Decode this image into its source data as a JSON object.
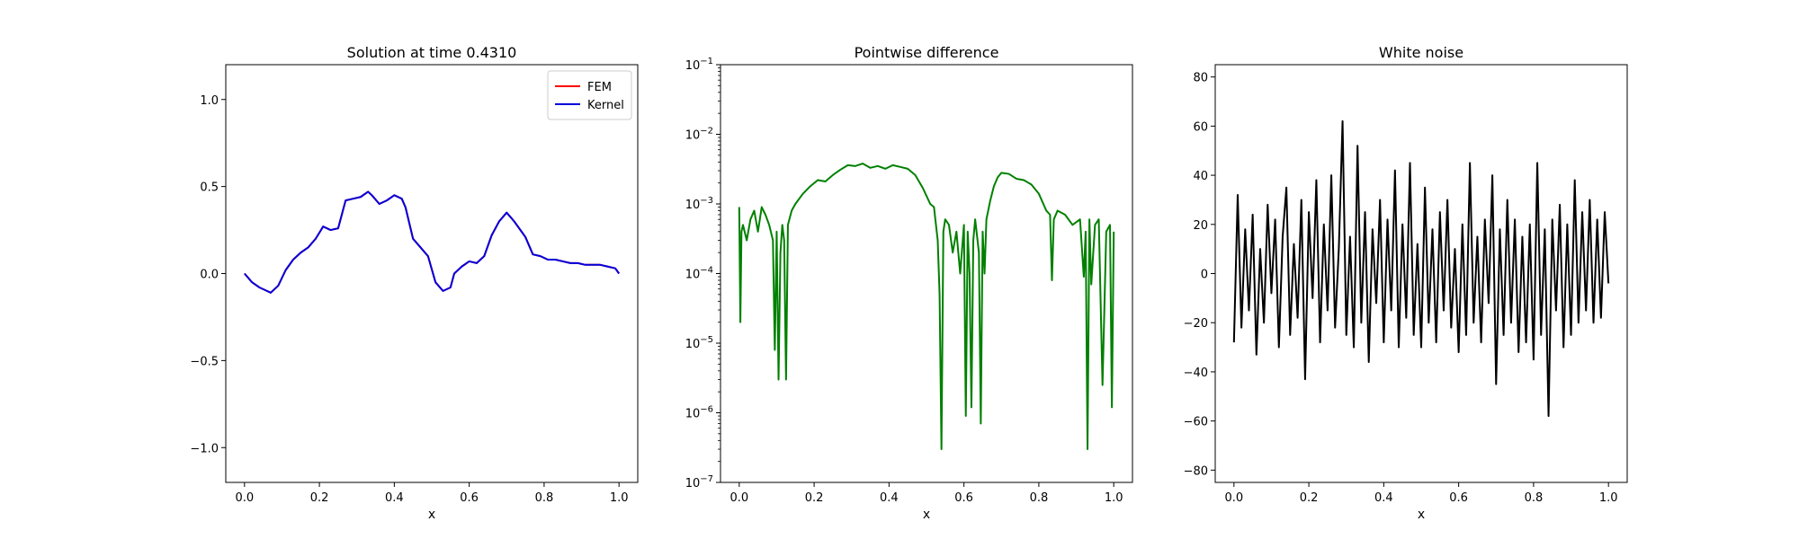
{
  "chart_data": [
    {
      "type": "line",
      "title": "Solution at time 0.4310",
      "xlabel": "x",
      "ylabel": "",
      "xlim": [
        -0.05,
        1.05
      ],
      "ylim": [
        -1.2,
        1.2
      ],
      "xticks": [
        0.0,
        0.2,
        0.4,
        0.6,
        0.8,
        1.0
      ],
      "xtick_labels": [
        "0.0",
        "0.2",
        "0.4",
        "0.6",
        "0.8",
        "1.0"
      ],
      "yticks": [
        -1.0,
        -0.5,
        0.0,
        0.5,
        1.0
      ],
      "ytick_labels": [
        "−1.0",
        "−0.5",
        "0.0",
        "0.5",
        "1.0"
      ],
      "legend_position": "top-right",
      "series": [
        {
          "name": "FEM",
          "color": "#ff0000",
          "x": [
            0.0,
            0.02,
            0.04,
            0.06,
            0.07,
            0.09,
            0.11,
            0.13,
            0.15,
            0.17,
            0.19,
            0.21,
            0.23,
            0.25,
            0.27,
            0.29,
            0.31,
            0.33,
            0.34,
            0.36,
            0.38,
            0.4,
            0.42,
            0.43,
            0.45,
            0.47,
            0.49,
            0.51,
            0.53,
            0.55,
            0.56,
            0.58,
            0.6,
            0.62,
            0.64,
            0.66,
            0.68,
            0.7,
            0.72,
            0.74,
            0.75,
            0.77,
            0.79,
            0.81,
            0.83,
            0.85,
            0.87,
            0.89,
            0.91,
            0.93,
            0.95,
            0.97,
            0.99,
            1.0
          ],
          "y": [
            0.0,
            -0.05,
            -0.08,
            -0.1,
            -0.11,
            -0.07,
            0.02,
            0.08,
            0.12,
            0.15,
            0.2,
            0.27,
            0.25,
            0.26,
            0.42,
            0.43,
            0.44,
            0.47,
            0.45,
            0.4,
            0.42,
            0.45,
            0.43,
            0.38,
            0.2,
            0.15,
            0.1,
            -0.05,
            -0.1,
            -0.08,
            0.0,
            0.04,
            0.07,
            0.06,
            0.1,
            0.22,
            0.3,
            0.35,
            0.3,
            0.24,
            0.21,
            0.11,
            0.1,
            0.08,
            0.08,
            0.07,
            0.06,
            0.06,
            0.05,
            0.05,
            0.05,
            0.04,
            0.03,
            0.0
          ]
        },
        {
          "name": "Kernel",
          "color": "#0000dd",
          "x": [
            0.0,
            0.02,
            0.04,
            0.06,
            0.07,
            0.09,
            0.11,
            0.13,
            0.15,
            0.17,
            0.19,
            0.21,
            0.23,
            0.25,
            0.27,
            0.29,
            0.31,
            0.33,
            0.34,
            0.36,
            0.38,
            0.4,
            0.42,
            0.43,
            0.45,
            0.47,
            0.49,
            0.51,
            0.53,
            0.55,
            0.56,
            0.58,
            0.6,
            0.62,
            0.64,
            0.66,
            0.68,
            0.7,
            0.72,
            0.74,
            0.75,
            0.77,
            0.79,
            0.81,
            0.83,
            0.85,
            0.87,
            0.89,
            0.91,
            0.93,
            0.95,
            0.97,
            0.99,
            1.0
          ],
          "y": [
            0.0,
            -0.05,
            -0.08,
            -0.1,
            -0.11,
            -0.07,
            0.02,
            0.08,
            0.12,
            0.15,
            0.2,
            0.27,
            0.25,
            0.26,
            0.42,
            0.43,
            0.44,
            0.47,
            0.45,
            0.4,
            0.42,
            0.45,
            0.43,
            0.38,
            0.2,
            0.15,
            0.1,
            -0.05,
            -0.1,
            -0.08,
            0.0,
            0.04,
            0.07,
            0.06,
            0.1,
            0.22,
            0.3,
            0.35,
            0.3,
            0.24,
            0.21,
            0.11,
            0.1,
            0.08,
            0.08,
            0.07,
            0.06,
            0.06,
            0.05,
            0.05,
            0.05,
            0.04,
            0.03,
            0.0
          ]
        }
      ]
    },
    {
      "type": "line",
      "title": "Pointwise difference",
      "xlabel": "x",
      "ylabel": "",
      "yscale": "log",
      "xlim": [
        -0.05,
        1.05
      ],
      "ylim": [
        1e-07,
        0.1
      ],
      "xticks": [
        0.0,
        0.2,
        0.4,
        0.6,
        0.8,
        1.0
      ],
      "xtick_labels": [
        "0.0",
        "0.2",
        "0.4",
        "0.6",
        "0.8",
        "1.0"
      ],
      "yticks": [
        1e-07,
        1e-06,
        1e-05,
        0.0001,
        0.001,
        0.01,
        0.1
      ],
      "ytick_labels": [
        {
          "base": "10",
          "exp": "−7"
        },
        {
          "base": "10",
          "exp": "−6"
        },
        {
          "base": "10",
          "exp": "−5"
        },
        {
          "base": "10",
          "exp": "−4"
        },
        {
          "base": "10",
          "exp": "−3"
        },
        {
          "base": "10",
          "exp": "−2"
        },
        {
          "base": "10",
          "exp": "−1"
        }
      ],
      "series": [
        {
          "color": "#008000",
          "x": [
            0.0,
            0.003,
            0.006,
            0.01,
            0.02,
            0.03,
            0.04,
            0.05,
            0.06,
            0.07,
            0.08,
            0.09,
            0.095,
            0.1,
            0.105,
            0.11,
            0.115,
            0.12,
            0.125,
            0.13,
            0.14,
            0.15,
            0.17,
            0.19,
            0.21,
            0.23,
            0.25,
            0.27,
            0.29,
            0.31,
            0.33,
            0.35,
            0.37,
            0.39,
            0.41,
            0.43,
            0.45,
            0.47,
            0.49,
            0.51,
            0.52,
            0.53,
            0.535,
            0.54,
            0.545,
            0.55,
            0.56,
            0.57,
            0.58,
            0.59,
            0.6,
            0.605,
            0.61,
            0.615,
            0.62,
            0.625,
            0.63,
            0.64,
            0.645,
            0.65,
            0.655,
            0.66,
            0.67,
            0.68,
            0.69,
            0.7,
            0.72,
            0.74,
            0.76,
            0.78,
            0.8,
            0.82,
            0.83,
            0.835,
            0.84,
            0.85,
            0.87,
            0.89,
            0.91,
            0.92,
            0.925,
            0.93,
            0.935,
            0.94,
            0.95,
            0.96,
            0.97,
            0.98,
            0.99,
            0.995,
            1.0
          ],
          "y": [
            0.0009,
            2e-05,
            0.0004,
            0.0005,
            0.0003,
            0.0006,
            0.0008,
            0.0004,
            0.0009,
            0.0007,
            0.0005,
            0.0003,
            8e-06,
            0.0004,
            3e-06,
            0.0002,
            0.0005,
            0.0003,
            3e-06,
            0.0005,
            0.0008,
            0.001,
            0.0014,
            0.0018,
            0.0022,
            0.0021,
            0.0026,
            0.0031,
            0.0036,
            0.0035,
            0.0038,
            0.0033,
            0.0035,
            0.0032,
            0.0036,
            0.0034,
            0.0032,
            0.0026,
            0.0017,
            0.001,
            0.0009,
            0.0003,
            5e-05,
            3e-07,
            0.0004,
            0.0006,
            0.0005,
            0.0002,
            0.0004,
            0.0001,
            0.0005,
            9e-07,
            0.0004,
            0.0001,
            1.2e-06,
            0.0003,
            0.0006,
            0.0002,
            7e-07,
            0.0004,
            0.0001,
            0.0006,
            0.0011,
            0.0018,
            0.0024,
            0.0028,
            0.0027,
            0.0023,
            0.0022,
            0.0019,
            0.0014,
            0.0008,
            0.0007,
            8e-05,
            0.0006,
            0.0008,
            0.0007,
            0.0005,
            0.0006,
            9e-05,
            0.0004,
            3e-07,
            0.0006,
            7e-05,
            0.0005,
            0.0006,
            2.5e-06,
            0.0004,
            0.0005,
            1.2e-06,
            0.0004
          ]
        }
      ]
    },
    {
      "type": "line",
      "title": "White noise",
      "xlabel": "x",
      "ylabel": "",
      "xlim": [
        -0.05,
        1.05
      ],
      "ylim": [
        -85,
        85
      ],
      "xticks": [
        0.0,
        0.2,
        0.4,
        0.6,
        0.8,
        1.0
      ],
      "xtick_labels": [
        "0.0",
        "0.2",
        "0.4",
        "0.6",
        "0.8",
        "1.0"
      ],
      "yticks": [
        -80,
        -60,
        -40,
        -20,
        0,
        20,
        40,
        60,
        80
      ],
      "ytick_labels": [
        "−80",
        "−60",
        "−40",
        "−20",
        "0",
        "20",
        "40",
        "60",
        "80"
      ],
      "series": [
        {
          "color": "#000000",
          "x": [
            0.0,
            0.01,
            0.02,
            0.03,
            0.04,
            0.05,
            0.06,
            0.07,
            0.08,
            0.09,
            0.1,
            0.11,
            0.12,
            0.13,
            0.14,
            0.15,
            0.16,
            0.17,
            0.18,
            0.19,
            0.2,
            0.21,
            0.22,
            0.23,
            0.24,
            0.25,
            0.26,
            0.27,
            0.28,
            0.29,
            0.3,
            0.31,
            0.32,
            0.33,
            0.34,
            0.35,
            0.36,
            0.37,
            0.38,
            0.39,
            0.4,
            0.41,
            0.42,
            0.43,
            0.44,
            0.45,
            0.46,
            0.47,
            0.48,
            0.49,
            0.5,
            0.51,
            0.52,
            0.53,
            0.54,
            0.55,
            0.56,
            0.57,
            0.58,
            0.59,
            0.6,
            0.61,
            0.62,
            0.63,
            0.64,
            0.65,
            0.66,
            0.67,
            0.68,
            0.69,
            0.7,
            0.71,
            0.72,
            0.73,
            0.74,
            0.75,
            0.76,
            0.77,
            0.78,
            0.79,
            0.8,
            0.81,
            0.82,
            0.83,
            0.84,
            0.85,
            0.86,
            0.87,
            0.88,
            0.89,
            0.9,
            0.91,
            0.92,
            0.93,
            0.94,
            0.95,
            0.96,
            0.97,
            0.98,
            0.99,
            1.0
          ],
          "y": [
            -28,
            32,
            -22,
            18,
            -15,
            24,
            -33,
            10,
            -20,
            28,
            -8,
            22,
            -30,
            15,
            35,
            -25,
            12,
            -18,
            30,
            -43,
            25,
            -10,
            38,
            -28,
            20,
            -15,
            40,
            -22,
            10,
            62,
            -25,
            15,
            -30,
            52,
            -20,
            25,
            -36,
            18,
            -12,
            30,
            -28,
            22,
            -15,
            42,
            -30,
            20,
            -18,
            45,
            -25,
            12,
            -30,
            35,
            -20,
            18,
            -28,
            25,
            -15,
            30,
            -22,
            10,
            -32,
            20,
            -25,
            45,
            -20,
            15,
            -28,
            22,
            -12,
            40,
            -45,
            18,
            -25,
            30,
            -20,
            22,
            -32,
            15,
            -28,
            20,
            -35,
            45,
            -25,
            18,
            -58,
            22,
            -15,
            28,
            -30,
            20,
            -25,
            38,
            -20,
            25,
            -15,
            30,
            -20,
            22,
            -18,
            25,
            -4
          ]
        }
      ]
    }
  ]
}
